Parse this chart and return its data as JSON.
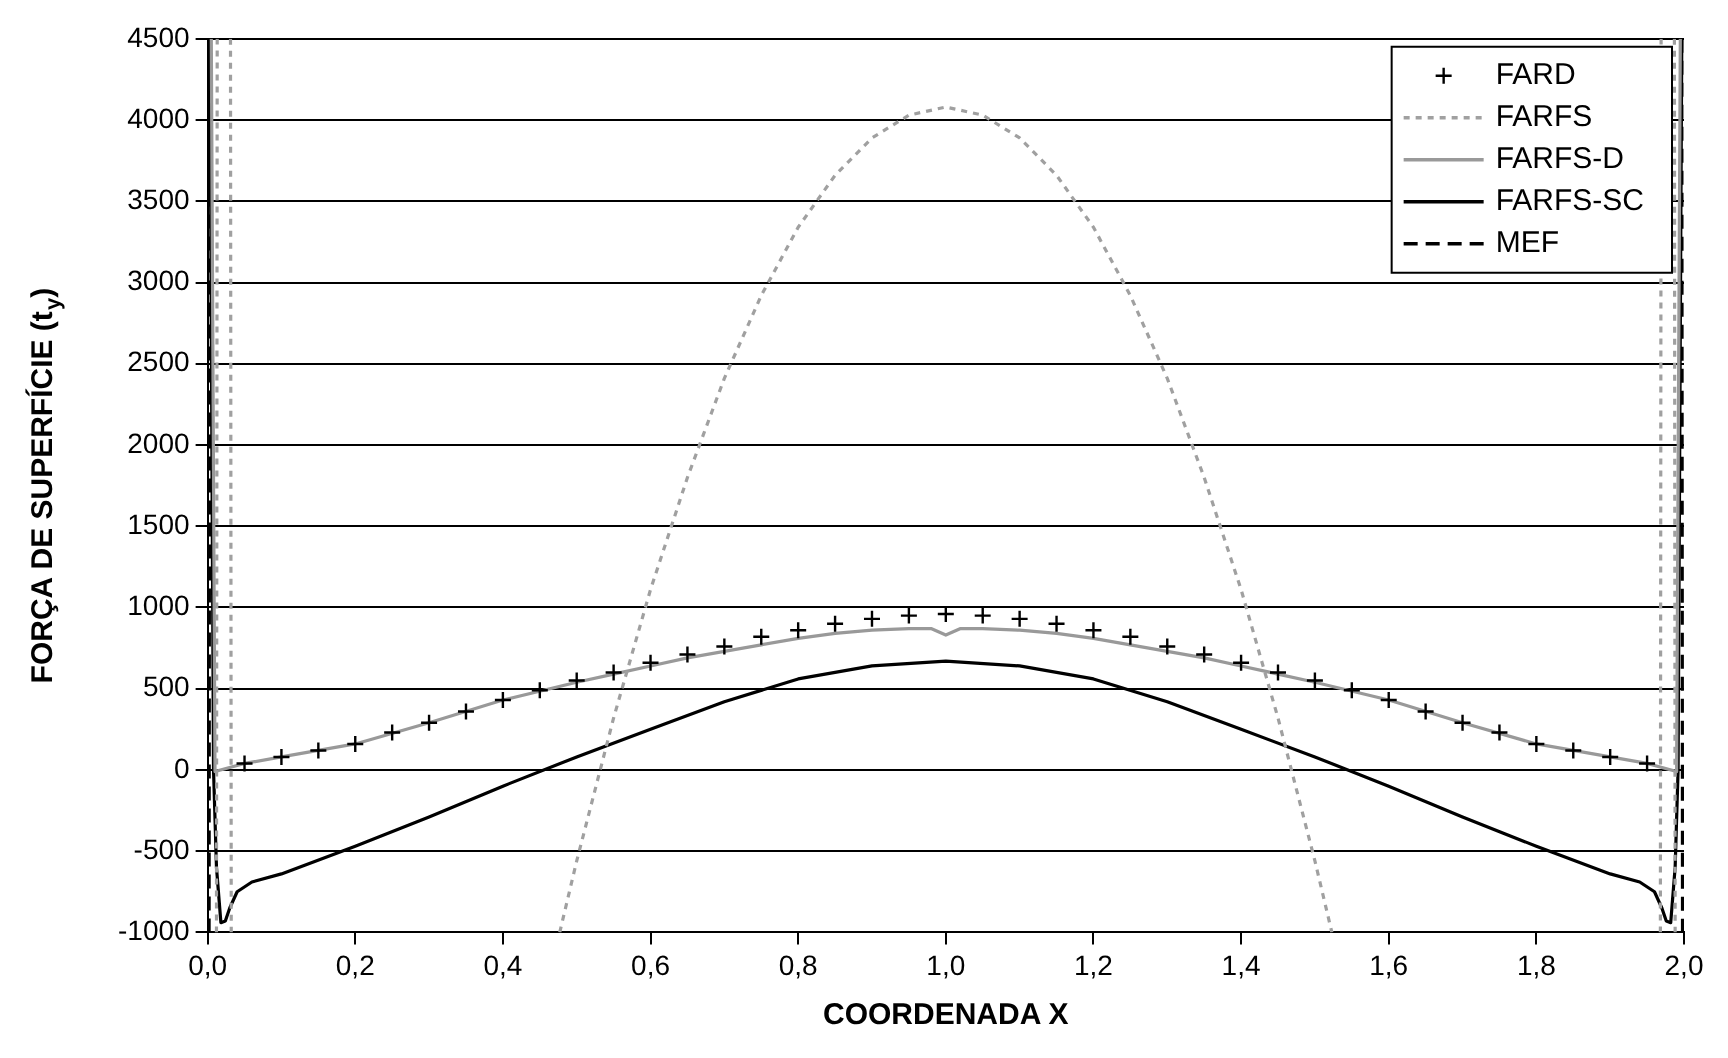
{
  "chart_data": {
    "type": "line",
    "xlabel": "COORDENADA X",
    "ylabel": "FORÇA DE SUPERFÍCIE (t$_{y}$)",
    "xlim": [
      0,
      2
    ],
    "ylim": [
      -1000,
      4500
    ],
    "xticks": [
      {
        "value": 0,
        "label": "0,0"
      },
      {
        "value": 0.2,
        "label": "0,2"
      },
      {
        "value": 0.4,
        "label": "0,4"
      },
      {
        "value": 0.6,
        "label": "0,6"
      },
      {
        "value": 0.8,
        "label": "0,8"
      },
      {
        "value": 1,
        "label": "1,0"
      },
      {
        "value": 1.2,
        "label": "1,2"
      },
      {
        "value": 1.4,
        "label": "1,4"
      },
      {
        "value": 1.6,
        "label": "1,6"
      },
      {
        "value": 1.8,
        "label": "1,8"
      },
      {
        "value": 2,
        "label": "2,0"
      }
    ],
    "yticks": [
      -1000,
      -500,
      0,
      500,
      1000,
      1500,
      2000,
      2500,
      3000,
      3500,
      4000,
      4500
    ],
    "grid": "y",
    "legend": "top right",
    "series": [
      {
        "name": "FARD",
        "type": "scatter",
        "marker": "cross",
        "color": "#000000",
        "x": [
          0.05,
          0.1,
          0.15,
          0.2,
          0.25,
          0.3,
          0.35,
          0.4,
          0.45,
          0.5,
          0.55,
          0.6,
          0.65,
          0.7,
          0.75,
          0.8,
          0.85,
          0.9,
          0.95,
          1,
          1.05,
          1.1,
          1.15,
          1.2,
          1.25,
          1.3,
          1.35,
          1.4,
          1.45,
          1.5,
          1.55,
          1.6,
          1.65,
          1.7,
          1.75,
          1.8,
          1.85,
          1.9,
          1.95
        ],
        "values": [
          40,
          80,
          120,
          160,
          230,
          290,
          360,
          430,
          490,
          550,
          600,
          660,
          710,
          760,
          820,
          860,
          900,
          930,
          950,
          960,
          950,
          930,
          900,
          860,
          820,
          760,
          710,
          660,
          600,
          550,
          490,
          430,
          360,
          290,
          230,
          160,
          120,
          80,
          40
        ]
      },
      {
        "name": "FARFS",
        "type": "line",
        "line_style": "dotted",
        "color": "#a0a0a0",
        "x": [
          0.012,
          0.013,
          0.02,
          0.031,
          0.032,
          0.2,
          0.477,
          0.5,
          0.55,
          0.6,
          0.65,
          0.7,
          0.75,
          0.8,
          0.85,
          0.9,
          0.95,
          1,
          1.05,
          1.1,
          1.15,
          1.2,
          1.25,
          1.3,
          1.35,
          1.4,
          1.45,
          1.5,
          1.523,
          1.8,
          1.968,
          1.969,
          1.98,
          1.987,
          1.988
        ],
        "values": [
          -1000,
          4500,
          null,
          4500,
          -1000,
          null,
          -1000,
          -560,
          320,
          1110,
          1800,
          2410,
          2920,
          3340,
          3660,
          3890,
          4030,
          4080,
          4030,
          3890,
          3660,
          3340,
          2920,
          2410,
          1800,
          1110,
          320,
          -560,
          -1000,
          null,
          -1000,
          4500,
          null,
          4500,
          -1000
        ]
      },
      {
        "name": "FARFS-D",
        "type": "line",
        "line_style": "solid",
        "color": "#999999",
        "x": [
          0.005,
          0.01,
          0.05,
          0.1,
          0.2,
          0.3,
          0.4,
          0.5,
          0.55,
          0.6,
          0.65,
          0.7,
          0.75,
          0.8,
          0.85,
          0.9,
          0.95,
          0.98,
          1,
          1.02,
          1.05,
          1.1,
          1.15,
          1.2,
          1.25,
          1.3,
          1.35,
          1.4,
          1.45,
          1.5,
          1.6,
          1.7,
          1.8,
          1.9,
          1.95,
          1.99,
          1.995
        ],
        "values": [
          4500,
          -10,
          40,
          80,
          160,
          290,
          430,
          540,
          590,
          640,
          690,
          730,
          770,
          810,
          840,
          860,
          870,
          870,
          830,
          870,
          870,
          860,
          840,
          810,
          770,
          730,
          690,
          640,
          590,
          540,
          430,
          290,
          160,
          80,
          40,
          -10,
          4500
        ]
      },
      {
        "name": "FARFS-SC",
        "type": "line",
        "line_style": "solid",
        "color": "#000000",
        "x": [
          0.003,
          0.008,
          0.012,
          0.018,
          0.024,
          0.03,
          0.04,
          0.06,
          0.1,
          0.2,
          0.3,
          0.4,
          0.5,
          0.6,
          0.7,
          0.8,
          0.9,
          1,
          1.1,
          1.2,
          1.3,
          1.4,
          1.5,
          1.6,
          1.7,
          1.8,
          1.9,
          1.94,
          1.96,
          1.97,
          1.976,
          1.982,
          1.988,
          1.992,
          1.997
        ],
        "values": [
          4500,
          0,
          -600,
          -940,
          -930,
          -850,
          -750,
          -690,
          -640,
          -470,
          -290,
          -100,
          80,
          250,
          420,
          560,
          640,
          670,
          640,
          560,
          420,
          250,
          80,
          -100,
          -290,
          -470,
          -640,
          -690,
          -750,
          -850,
          -930,
          -940,
          -600,
          0,
          4500
        ]
      },
      {
        "name": "MEF",
        "type": "line",
        "line_style": "dashed",
        "color": "#000000",
        "x": [
          0.002,
          0.003,
          1,
          1.997,
          1.998
        ],
        "values": [
          -1000,
          4500,
          null,
          4500,
          -1000
        ]
      }
    ]
  }
}
